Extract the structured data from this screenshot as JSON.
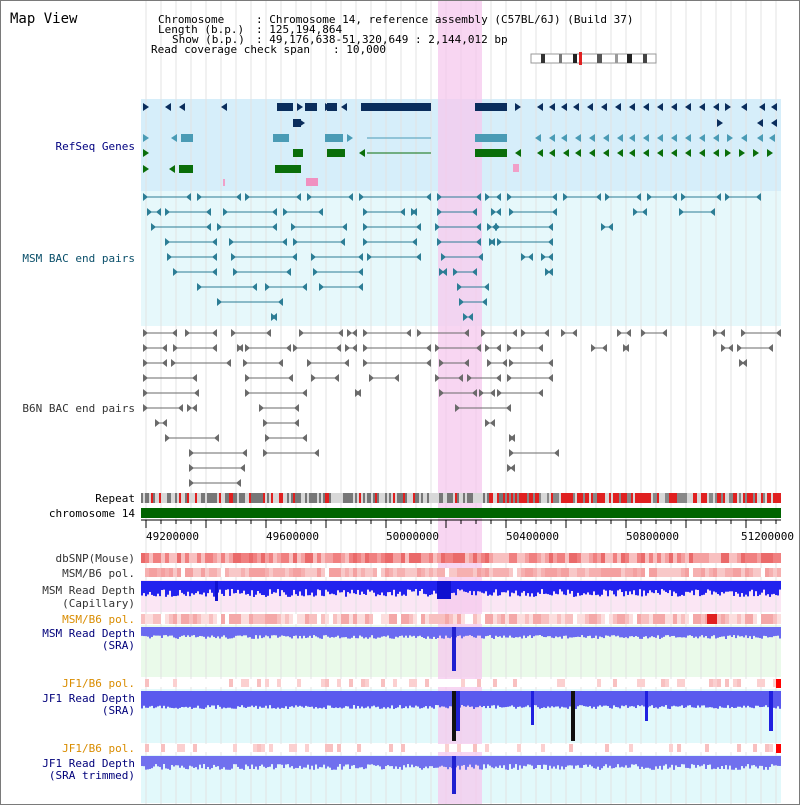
{
  "title": "Map View",
  "info": {
    "chromosome_label": "Chromosome",
    "chromosome_value": "Chromosome 14, reference assembly (C57BL/6J) (Build 37)",
    "length_label": "Length (b.p.)",
    "length_value": "125,194,864",
    "show_label": "Show (b.p.)",
    "show_value": "49,176,638-51,320,649 : 2,144,012 bp",
    "coverage_label": "Read coverage check span",
    "coverage_value": "10,000"
  },
  "tracks": {
    "refseq": "RefSeq Genes",
    "msm_bac": "MSM BAC end pairs",
    "b6n_bac": "B6N BAC end pairs",
    "repeat": "Repeat",
    "chromosome": "chromosome 14",
    "dbsnp": "dbSNP(Mouse)",
    "msm_b6_pol_1": "MSM/B6 pol.",
    "msm_depth_cap_1": "MSM Read Depth",
    "msm_depth_cap_2": "(Capillary)",
    "msm_b6_pol_2": "MSM/B6 pol.",
    "msm_depth_sra_1": "MSM Read Depth",
    "msm_depth_sra_2": "(SRA)",
    "jf1_b6_pol_1": "JF1/B6 pol.",
    "jf1_depth_sra_1": "JF1 Read Depth",
    "jf1_depth_sra_2": "(SRA)",
    "jf1_b6_pol_2": "JF1/B6 pol.",
    "jf1_depth_trim_1": "JF1 Read Depth",
    "jf1_depth_trim_2": "(SRA trimmed)"
  },
  "axis_ticks": [
    "49200000",
    "49600000",
    "50000000",
    "50400000",
    "50800000",
    "51200000"
  ],
  "colors": {
    "refseq_bg": "#d6eefa",
    "bac_bg": "#e6f8fb",
    "highlight": "#f6c8ee",
    "gene_navy": "#0a2d5c",
    "gene_teal": "#4a9bb5",
    "gene_green": "#0a6e0a",
    "chromosome": "#006400",
    "depth_blue": "#2222ee"
  }
}
